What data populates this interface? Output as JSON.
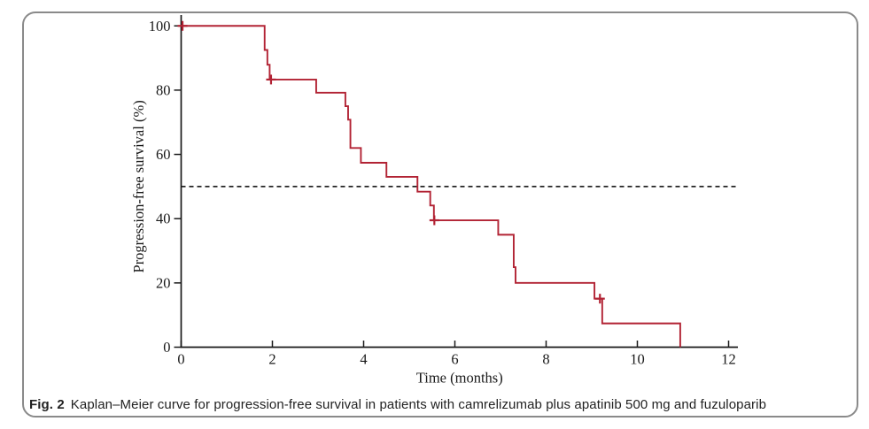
{
  "figure": {
    "caption_label": "Fig. 2",
    "caption_text": "Kaplan–Meier curve for progression-free survival in patients with camrelizumab plus apatinib 500 mg and fuzuloparib"
  },
  "chart_data": {
    "type": "line",
    "subtype": "kaplan-meier-step",
    "title": "",
    "xlabel": "Time (months)",
    "ylabel": "Progression-free survival (%)",
    "xlim": [
      0,
      12.2
    ],
    "ylim": [
      0,
      100
    ],
    "xticks": [
      0,
      2,
      4,
      6,
      8,
      10,
      12
    ],
    "yticks": [
      0,
      20,
      40,
      60,
      80,
      100
    ],
    "grid": false,
    "legend": "none",
    "median_reference_line": {
      "y": 50,
      "style": "dashed",
      "color": "#000000"
    },
    "series": [
      {
        "name": "Progression-free survival",
        "color": "#b22334",
        "km_points": [
          [
            0,
            100
          ],
          [
            1.83,
            92.5
          ],
          [
            1.89,
            87.9
          ],
          [
            1.94,
            83.3
          ],
          [
            2.96,
            79.2
          ],
          [
            3.6,
            75.0
          ],
          [
            3.66,
            70.8
          ],
          [
            3.71,
            62.0
          ],
          [
            3.94,
            57.4
          ],
          [
            4.5,
            53.0
          ],
          [
            5.18,
            48.4
          ],
          [
            5.46,
            44.1
          ],
          [
            5.54,
            39.5
          ],
          [
            6.95,
            35.0
          ],
          [
            7.29,
            24.9
          ],
          [
            7.33,
            20.0
          ],
          [
            9.06,
            15.1
          ],
          [
            9.23,
            7.4
          ],
          [
            10.94,
            0
          ]
        ],
        "censor_marks": [
          [
            0.03,
            100
          ],
          [
            1.97,
            83.3
          ],
          [
            5.55,
            39.5
          ],
          [
            9.18,
            15.1
          ]
        ]
      }
    ]
  },
  "colors": {
    "curve": "#b22334",
    "axis": "#1a1a1a",
    "median_line": "#000000",
    "frame_border": "#8a8a8a"
  }
}
